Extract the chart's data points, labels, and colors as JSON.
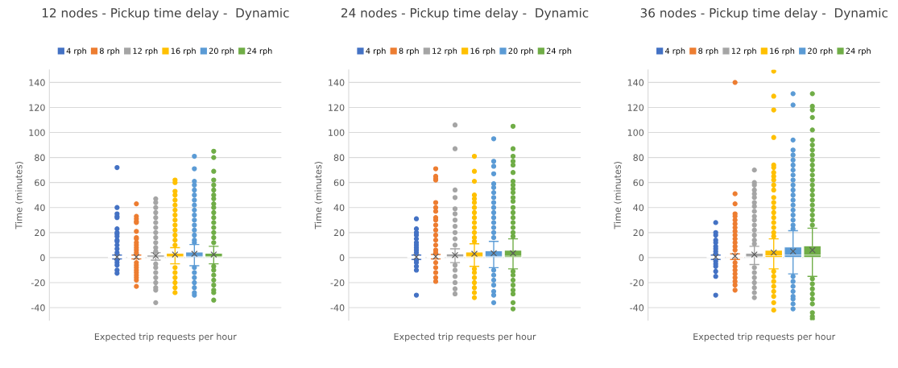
{
  "chart_data": [
    {
      "type": "box",
      "title": "12 nodes - Pickup time delay -  Dynamic",
      "xlabel": "Expected trip requests per hour",
      "ylabel": "Time (minutes)",
      "categories": [
        null
      ],
      "ylim": [
        -50,
        150
      ],
      "yticks": [
        -40,
        -20,
        0,
        20,
        40,
        60,
        80,
        100,
        120,
        140
      ],
      "grid": "y",
      "legend": "top",
      "series": [
        {
          "name": "4 rph",
          "color": "#4472c4",
          "boxes": [
            {
              "low": -1,
              "q1": 0,
              "median": 0,
              "q3": 0.3,
              "high": 2,
              "mean": 0.5,
              "outliers": [
                72,
                40,
                35,
                33,
                32,
                23,
                20,
                19,
                17,
                14,
                13,
                10,
                7,
                4,
                -2,
                -4,
                -6,
                -10,
                -12.5
              ]
            }
          ]
        },
        {
          "name": "8 rph",
          "color": "#ed7d31",
          "boxes": [
            {
              "low": -1,
              "q1": 0,
              "median": 0,
              "q3": 0.3,
              "high": 2,
              "mean": 0.5,
              "outliers": [
                43,
                33,
                31,
                29,
                28,
                21,
                16,
                15,
                12,
                10,
                8,
                6,
                4,
                -4,
                -6,
                -8,
                -10,
                -12,
                -14,
                -16,
                -18,
                -23
              ]
            }
          ]
        },
        {
          "name": "12 rph",
          "color": "#a5a5a5",
          "boxes": [
            {
              "low": -2,
              "q1": 0,
              "median": 0.5,
              "q3": 2,
              "high": 4,
              "mean": 1.5,
              "outliers": [
                47,
                44,
                40,
                36,
                32,
                28,
                24,
                20,
                16,
                12,
                8,
                5,
                -5,
                -8,
                -12,
                -16,
                -20,
                -24,
                -26,
                -36
              ]
            }
          ]
        },
        {
          "name": "16 rph",
          "color": "#ffc000",
          "boxes": [
            {
              "low": -5,
              "q1": 0,
              "median": 0.8,
              "q3": 3.5,
              "high": 8,
              "mean": 2.5,
              "outliers": [
                62,
                60,
                53,
                50,
                46,
                42,
                38,
                34,
                30,
                26,
                22,
                18,
                14,
                10,
                -8,
                -12,
                -16,
                -20,
                -24,
                -28
              ]
            }
          ]
        },
        {
          "name": "20 rph",
          "color": "#5b9bd5",
          "boxes": [
            {
              "low": -6.5,
              "q1": 0,
              "median": 1,
              "q3": 4.5,
              "high": 10.5,
              "mean": 3,
              "outliers": [
                81,
                71,
                61,
                58,
                54,
                50,
                46,
                42,
                38,
                34,
                30,
                26,
                22,
                18,
                14,
                12,
                -8,
                -12,
                -16,
                -20,
                -24,
                -28,
                -30
              ]
            }
          ]
        },
        {
          "name": "24 rph",
          "color": "#70ad47",
          "boxes": [
            {
              "low": -5,
              "q1": 0,
              "median": 0.8,
              "q3": 3.5,
              "high": 9,
              "mean": 2.5,
              "outliers": [
                85,
                80,
                69,
                62,
                58,
                54,
                50,
                47,
                43,
                40,
                36,
                32,
                28,
                24,
                20,
                16,
                12,
                -7,
                -10,
                -14,
                -18,
                -22,
                -26,
                -28,
                -34
              ]
            }
          ]
        }
      ]
    },
    {
      "type": "box",
      "title": "24 nodes - Pickup time delay -  Dynamic",
      "xlabel": "Expected trip requests per hour",
      "ylabel": "Time (minutes)",
      "categories": [
        null
      ],
      "ylim": [
        -50,
        150
      ],
      "yticks": [
        -40,
        -20,
        0,
        20,
        40,
        60,
        80,
        100,
        120,
        140
      ],
      "grid": "y",
      "legend": "top",
      "series": [
        {
          "name": "4 rph",
          "color": "#4472c4",
          "boxes": [
            {
              "low": -1.5,
              "q1": 0,
              "median": 0,
              "q3": 0.3,
              "high": 2,
              "mean": 0.5,
              "outliers": [
                31,
                23,
                20,
                18,
                15,
                12,
                10,
                8,
                6,
                4,
                -2,
                -4,
                -7,
                -10,
                -30
              ]
            }
          ]
        },
        {
          "name": "8 rph",
          "color": "#ed7d31",
          "boxes": [
            {
              "low": -1,
              "q1": 0,
              "median": 0,
              "q3": 0.3,
              "high": 2.5,
              "mean": 0.8,
              "outliers": [
                71,
                65,
                63,
                62,
                44,
                40,
                37,
                32,
                30,
                26,
                22,
                18,
                14,
                10,
                6,
                4,
                -4,
                -8,
                -12,
                -16,
                -19
              ]
            }
          ]
        },
        {
          "name": "12 rph",
          "color": "#a5a5a5",
          "boxes": [
            {
              "low": -4,
              "q1": 0,
              "median": 0.8,
              "q3": 3,
              "high": 7,
              "mean": 2,
              "outliers": [
                106,
                87,
                54,
                48,
                39,
                35,
                30,
                25,
                20,
                15,
                10,
                -6,
                -10,
                -15,
                -20,
                -25,
                -29
              ]
            }
          ]
        },
        {
          "name": "16 rph",
          "color": "#ffc000",
          "boxes": [
            {
              "low": -7,
              "q1": 0,
              "median": 1,
              "q3": 4.5,
              "high": 11,
              "mean": 3,
              "outliers": [
                81,
                69,
                61,
                50,
                47,
                44,
                40,
                36,
                32,
                28,
                24,
                20,
                16,
                13,
                -9,
                -12,
                -16,
                -20,
                -24,
                -28,
                -32
              ]
            }
          ]
        },
        {
          "name": "20 rph",
          "color": "#5b9bd5",
          "boxes": [
            {
              "low": -8,
              "q1": 0,
              "median": 1,
              "q3": 5.5,
              "high": 13,
              "mean": 3.5,
              "outliers": [
                95,
                77,
                73,
                67,
                59,
                56,
                52,
                48,
                44,
                40,
                36,
                32,
                28,
                24,
                20,
                16,
                -10,
                -14,
                -18,
                -22,
                -27,
                -30,
                -36
              ]
            }
          ]
        },
        {
          "name": "24 rph",
          "color": "#70ad47",
          "boxes": [
            {
              "low": -9,
              "q1": 0,
              "median": 1.2,
              "q3": 6,
              "high": 15,
              "mean": 3.5,
              "outliers": [
                105,
                87,
                81,
                77,
                74,
                68,
                61,
                58,
                55,
                52,
                48,
                45,
                40,
                36,
                32,
                28,
                24,
                20,
                17,
                -11,
                -14,
                -18,
                -22,
                -26,
                -29,
                -36,
                -41
              ]
            }
          ]
        }
      ]
    },
    {
      "type": "box",
      "title": "36 nodes - Pickup time delay -  Dynamic",
      "xlabel": "Expected trip requests per hour",
      "ylabel": "Time (minutes)",
      "categories": [
        null
      ],
      "ylim": [
        -50,
        150
      ],
      "yticks": [
        -40,
        -20,
        0,
        20,
        40,
        60,
        80,
        100,
        120,
        140
      ],
      "grid": "y",
      "legend": "top",
      "series": [
        {
          "name": "4 rph",
          "color": "#4472c4",
          "boxes": [
            {
              "low": -1.5,
              "q1": 0,
              "median": 0,
              "q3": 0.3,
              "high": 2,
              "mean": 0.5,
              "outliers": [
                28,
                20,
                18,
                14,
                12,
                9,
                7,
                5,
                3,
                -3,
                -5,
                -7,
                -11,
                -15,
                -30
              ]
            }
          ]
        },
        {
          "name": "8 rph",
          "color": "#ed7d31",
          "boxes": [
            {
              "low": -1.5,
              "q1": 0,
              "median": 0.3,
              "q3": 1,
              "high": 3,
              "mean": 1.2,
              "outliers": [
                140,
                51,
                43,
                35,
                33,
                30,
                27,
                24,
                21,
                18,
                15,
                12,
                9,
                6,
                -4,
                -7,
                -10,
                -13,
                -16,
                -19,
                -22,
                -26
              ]
            }
          ]
        },
        {
          "name": "12 rph",
          "color": "#a5a5a5",
          "boxes": [
            {
              "low": -5.5,
              "q1": 0,
              "median": 0.8,
              "q3": 3.5,
              "high": 9,
              "mean": 2.5,
              "outliers": [
                70,
                60,
                58,
                54,
                51,
                48,
                44,
                41,
                37,
                33,
                30,
                26,
                22,
                18,
                14,
                11,
                -8,
                -12,
                -16,
                -20,
                -24,
                -28,
                -32
              ]
            }
          ]
        },
        {
          "name": "16 rph",
          "color": "#ffc000",
          "boxes": [
            {
              "low": -9,
              "q1": 0,
              "median": 1.5,
              "q3": 6,
              "high": 15,
              "mean": 4,
              "outliers": [
                149,
                129,
                118,
                96,
                74,
                72,
                68,
                65,
                62,
                58,
                54,
                48,
                44,
                40,
                36,
                32,
                28,
                24,
                20,
                17,
                -11,
                -15,
                -19,
                -23,
                -27,
                -31,
                -36,
                -42
              ]
            }
          ]
        },
        {
          "name": "20 rph",
          "color": "#5b9bd5",
          "boxes": [
            {
              "low": -13,
              "q1": 0,
              "median": 2,
              "q3": 8.5,
              "high": 21.5,
              "mean": 5,
              "outliers": [
                131,
                122,
                94,
                86,
                82,
                78,
                74,
                70,
                66,
                62,
                58,
                54,
                50,
                46,
                42,
                38,
                34,
                30,
                26,
                23,
                -15,
                -19,
                -23,
                -27,
                -31,
                -33,
                -37,
                -41
              ]
            }
          ]
        },
        {
          "name": "24 rph",
          "color": "#70ad47",
          "boxes": [
            {
              "low": -15,
              "q1": 0,
              "median": 2,
              "q3": 9.5,
              "high": 23.5,
              "mean": 6,
              "outliers": [
                131,
                121,
                118,
                112,
                102,
                94,
                90,
                86,
                82,
                78,
                74,
                70,
                66,
                62,
                58,
                54,
                50,
                46,
                42,
                38,
                34,
                30,
                26,
                -17,
                -21,
                -25,
                -29,
                -33,
                -37,
                -44,
                -47,
                -49
              ]
            }
          ]
        }
      ]
    }
  ]
}
